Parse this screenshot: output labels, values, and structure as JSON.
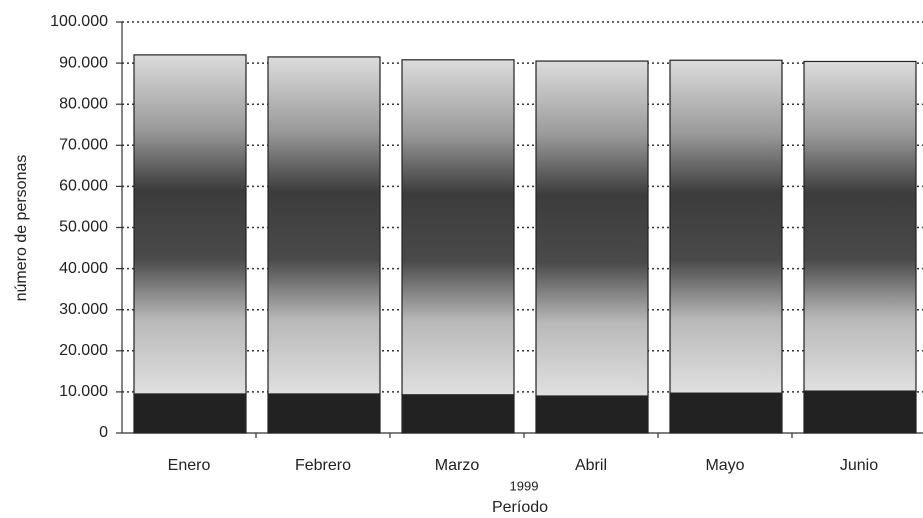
{
  "chart_data": {
    "type": "stacked-bar",
    "y_label": "número de personas",
    "x_label": "Período",
    "x_sublabel": "1999",
    "categories": [
      "Enero",
      "Febrero",
      "Marzo",
      "Abril",
      "Mayo",
      "Junio"
    ],
    "series": [
      {
        "color": "#222222",
        "values": [
          9500,
          9500,
          9300,
          9000,
          9700,
          10200
        ]
      },
      {
        "color": "gradient",
        "values": [
          82500,
          82000,
          81500,
          81500,
          81000,
          80200
        ]
      }
    ],
    "ylim": [
      0,
      100000
    ],
    "yticks": [
      0,
      {
        "value": 10000,
        "label": "10.000"
      },
      {
        "value": 20000,
        "label": "20.000"
      },
      {
        "value": 30000,
        "label": "30.000"
      },
      {
        "value": 40000,
        "label": "40.000"
      },
      {
        "value": 50000,
        "label": "50.000"
      },
      {
        "value": 60000,
        "label": "60.000"
      },
      {
        "value": 70000,
        "label": "70.000"
      },
      {
        "value": 80000,
        "label": "80.000"
      },
      {
        "value": 90000,
        "label": "90.000"
      },
      {
        "value": 100000,
        "label": "100.000"
      }
    ],
    "grid": true
  }
}
